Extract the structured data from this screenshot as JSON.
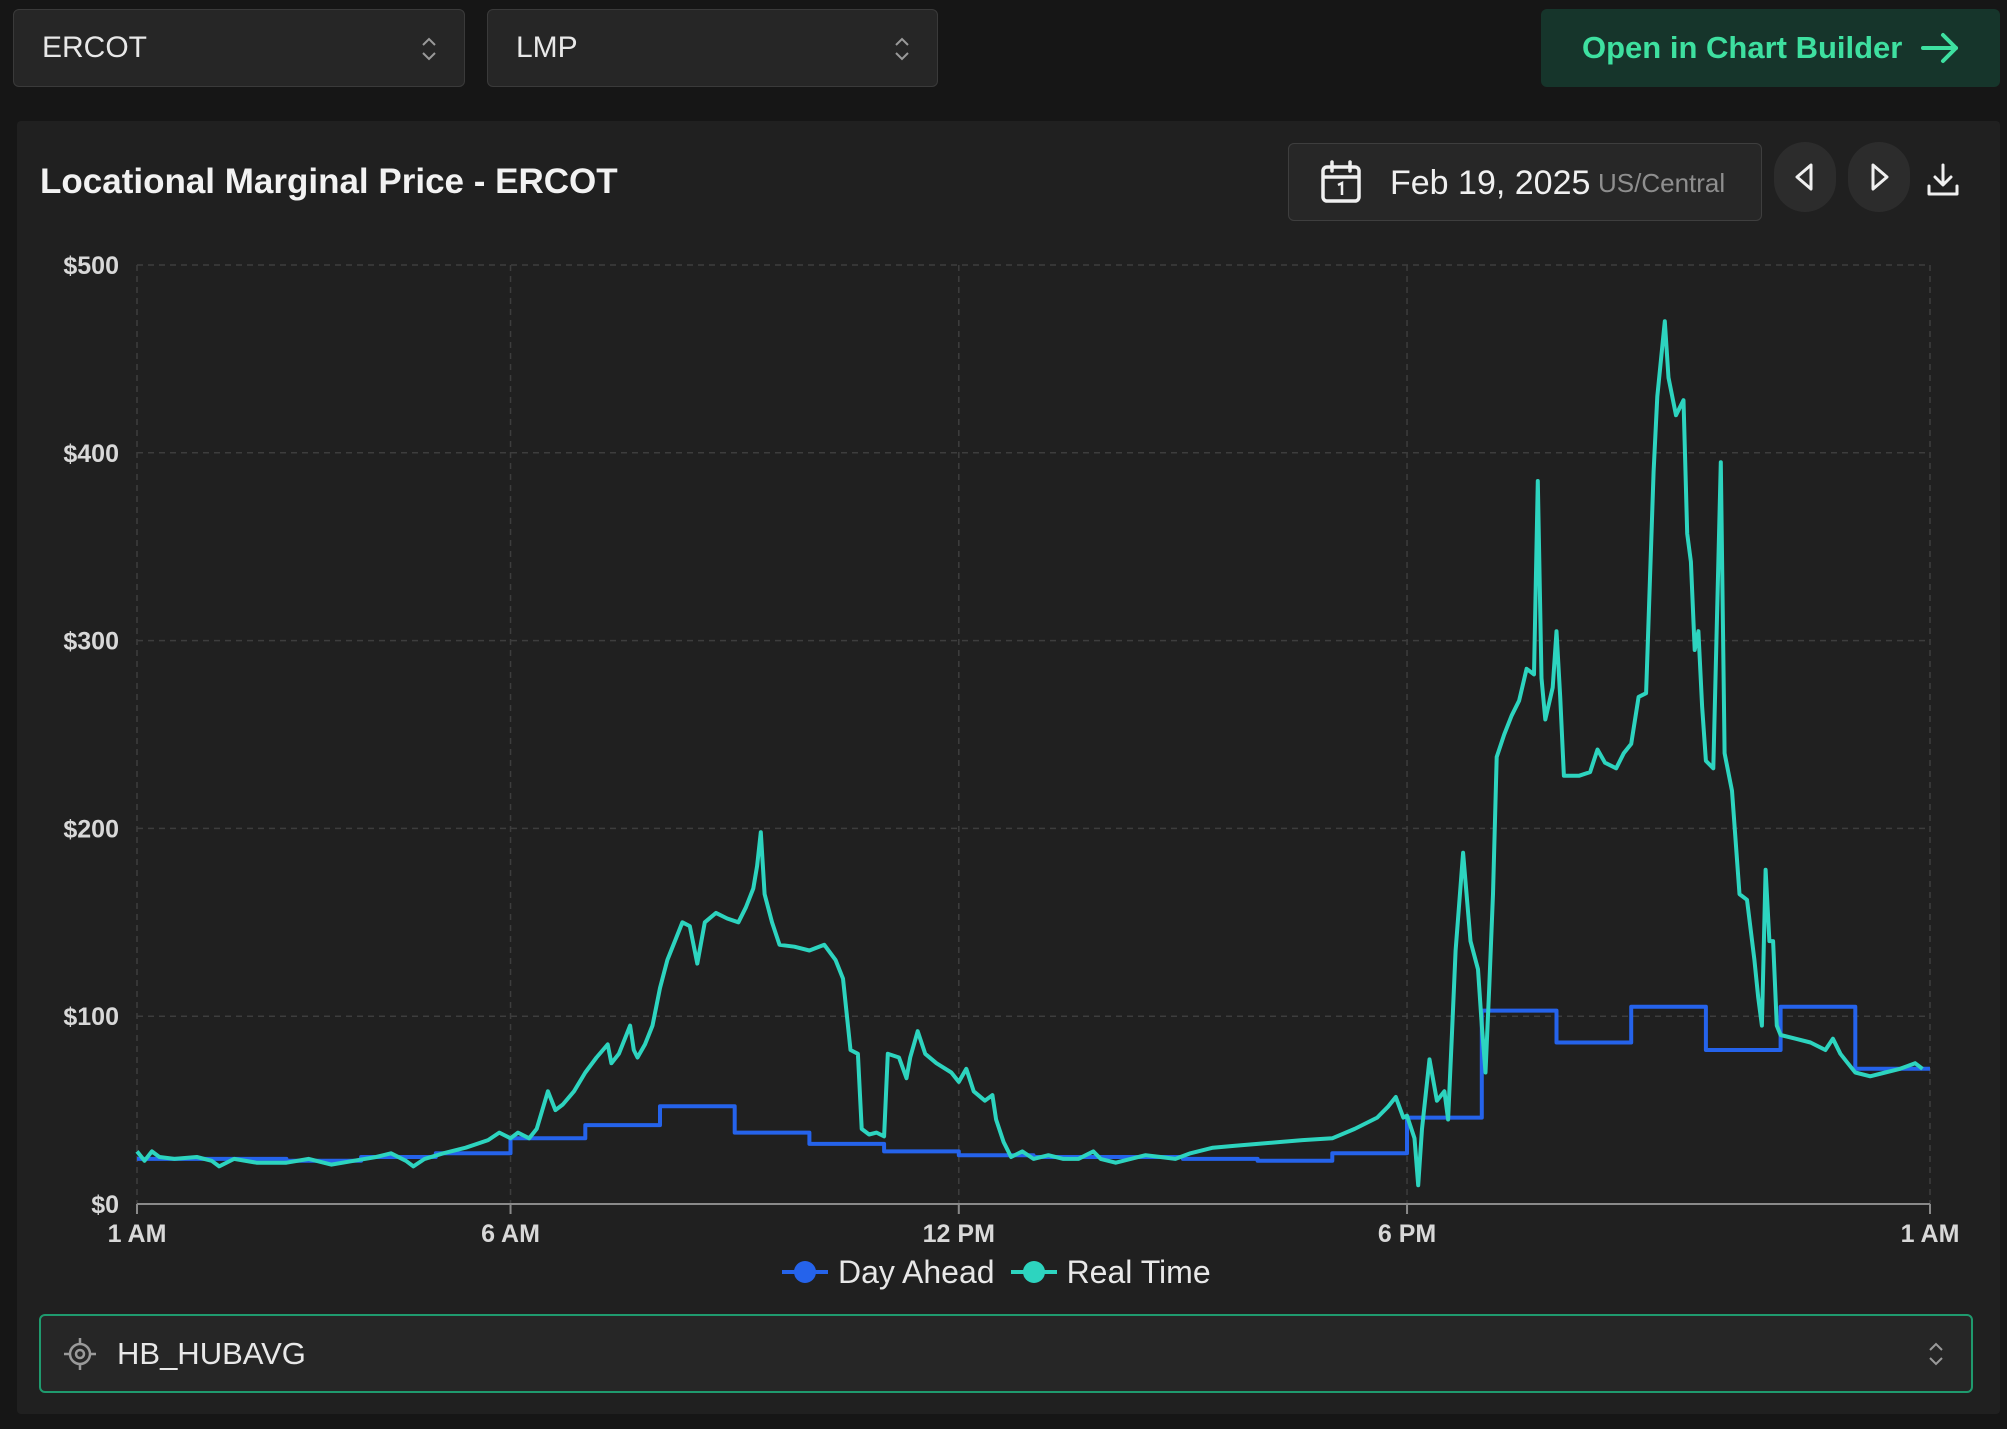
{
  "controls": {
    "iso": "ERCOT",
    "metric": "LMP",
    "open_builder": "Open in Chart Builder",
    "date": "Feb 19, 2025",
    "timezone": "US/Central",
    "node": "HB_HUBAVG"
  },
  "colors": {
    "day_ahead": "#2563eb",
    "real_time": "#2dd4bf",
    "accent": "#3ee0a0"
  },
  "chart_data": {
    "type": "line",
    "title": "Locational Marginal Price - ERCOT",
    "x_unit": "hours since 1 AM",
    "xlim": [
      0,
      24
    ],
    "ylim": [
      0,
      500
    ],
    "y_ticks": [
      "$0",
      "$100",
      "$200",
      "$300",
      "$400",
      "$500"
    ],
    "y_tick_values": [
      0,
      100,
      200,
      300,
      400,
      500
    ],
    "x_ticks": [
      "1 AM",
      "6 AM",
      "12 PM",
      "6 PM",
      "1 AM"
    ],
    "x_tick_values": [
      0,
      5,
      11,
      17,
      24
    ],
    "grid": true,
    "legend_position": "bottom",
    "series": [
      {
        "name": "Day Ahead",
        "step": true,
        "points": [
          [
            0,
            24
          ],
          [
            1,
            24
          ],
          [
            2,
            23
          ],
          [
            3,
            25
          ],
          [
            4,
            27
          ],
          [
            5,
            35
          ],
          [
            6,
            42
          ],
          [
            7,
            52
          ],
          [
            8,
            38
          ],
          [
            9,
            32
          ],
          [
            10,
            28
          ],
          [
            11,
            26
          ],
          [
            12,
            25
          ],
          [
            13,
            25
          ],
          [
            14,
            24
          ],
          [
            15,
            23
          ],
          [
            16,
            27
          ],
          [
            17,
            46
          ],
          [
            18,
            103
          ],
          [
            19,
            86
          ],
          [
            20,
            105
          ],
          [
            21,
            82
          ],
          [
            22,
            105
          ],
          [
            23,
            72
          ],
          [
            24,
            72
          ]
        ]
      },
      {
        "name": "Real Time",
        "step": false,
        "points": [
          [
            0,
            28
          ],
          [
            0.1,
            23
          ],
          [
            0.2,
            28
          ],
          [
            0.3,
            25
          ],
          [
            0.5,
            24
          ],
          [
            0.8,
            25
          ],
          [
            1,
            23
          ],
          [
            1.1,
            20
          ],
          [
            1.3,
            24
          ],
          [
            1.6,
            22
          ],
          [
            2,
            22
          ],
          [
            2.3,
            24
          ],
          [
            2.6,
            21
          ],
          [
            2.9,
            23
          ],
          [
            3.2,
            25
          ],
          [
            3.4,
            27
          ],
          [
            3.6,
            23
          ],
          [
            3.7,
            20
          ],
          [
            3.85,
            24
          ],
          [
            4.1,
            27
          ],
          [
            4.4,
            30
          ],
          [
            4.7,
            34
          ],
          [
            4.85,
            38
          ],
          [
            5,
            35
          ],
          [
            5.1,
            38
          ],
          [
            5.25,
            35
          ],
          [
            5.35,
            40
          ],
          [
            5.5,
            60
          ],
          [
            5.6,
            50
          ],
          [
            5.7,
            53
          ],
          [
            5.85,
            60
          ],
          [
            6,
            70
          ],
          [
            6.15,
            78
          ],
          [
            6.3,
            85
          ],
          [
            6.35,
            75
          ],
          [
            6.45,
            80
          ],
          [
            6.6,
            95
          ],
          [
            6.65,
            82
          ],
          [
            6.7,
            78
          ],
          [
            6.8,
            85
          ],
          [
            6.9,
            95
          ],
          [
            7,
            115
          ],
          [
            7.1,
            130
          ],
          [
            7.2,
            140
          ],
          [
            7.3,
            150
          ],
          [
            7.4,
            148
          ],
          [
            7.5,
            128
          ],
          [
            7.6,
            150
          ],
          [
            7.75,
            155
          ],
          [
            7.9,
            152
          ],
          [
            8.05,
            150
          ],
          [
            8.15,
            158
          ],
          [
            8.25,
            168
          ],
          [
            8.3,
            180
          ],
          [
            8.35,
            198
          ],
          [
            8.4,
            165
          ],
          [
            8.5,
            150
          ],
          [
            8.6,
            138
          ],
          [
            8.8,
            137
          ],
          [
            9,
            135
          ],
          [
            9.2,
            138
          ],
          [
            9.35,
            130
          ],
          [
            9.45,
            120
          ],
          [
            9.55,
            82
          ],
          [
            9.65,
            80
          ],
          [
            9.7,
            40
          ],
          [
            9.8,
            37
          ],
          [
            9.9,
            38
          ],
          [
            10,
            36
          ],
          [
            10.05,
            80
          ],
          [
            10.2,
            78
          ],
          [
            10.3,
            67
          ],
          [
            10.35,
            78
          ],
          [
            10.45,
            92
          ],
          [
            10.55,
            80
          ],
          [
            10.7,
            75
          ],
          [
            10.9,
            70
          ],
          [
            11,
            65
          ],
          [
            11.1,
            72
          ],
          [
            11.2,
            60
          ],
          [
            11.35,
            55
          ],
          [
            11.45,
            58
          ],
          [
            11.5,
            45
          ],
          [
            11.6,
            33
          ],
          [
            11.7,
            25
          ],
          [
            11.85,
            28
          ],
          [
            12,
            24
          ],
          [
            12.2,
            26
          ],
          [
            12.4,
            24
          ],
          [
            12.6,
            24
          ],
          [
            12.8,
            28
          ],
          [
            12.9,
            24
          ],
          [
            13.1,
            22
          ],
          [
            13.3,
            24
          ],
          [
            13.5,
            26
          ],
          [
            13.7,
            25
          ],
          [
            13.9,
            24
          ],
          [
            14.1,
            27
          ],
          [
            14.4,
            30
          ],
          [
            14.7,
            31
          ],
          [
            15,
            32
          ],
          [
            15.3,
            33
          ],
          [
            15.6,
            34
          ],
          [
            16,
            35
          ],
          [
            16.3,
            40
          ],
          [
            16.6,
            46
          ],
          [
            16.75,
            52
          ],
          [
            16.85,
            57
          ],
          [
            16.95,
            46
          ],
          [
            17,
            47
          ],
          [
            17.1,
            35
          ],
          [
            17.15,
            10
          ],
          [
            17.2,
            40
          ],
          [
            17.3,
            77
          ],
          [
            17.4,
            55
          ],
          [
            17.5,
            60
          ],
          [
            17.55,
            45
          ],
          [
            17.6,
            90
          ],
          [
            17.65,
            135
          ],
          [
            17.75,
            187
          ],
          [
            17.85,
            140
          ],
          [
            17.95,
            125
          ],
          [
            18,
            95
          ],
          [
            18.05,
            70
          ],
          [
            18.1,
            115
          ],
          [
            18.15,
            165
          ],
          [
            18.2,
            238
          ],
          [
            18.3,
            250
          ],
          [
            18.4,
            260
          ],
          [
            18.5,
            268
          ],
          [
            18.6,
            285
          ],
          [
            18.7,
            282
          ],
          [
            18.75,
            385
          ],
          [
            18.8,
            280
          ],
          [
            18.85,
            258
          ],
          [
            18.95,
            275
          ],
          [
            19,
            305
          ],
          [
            19.05,
            270
          ],
          [
            19.1,
            228
          ],
          [
            19.3,
            228
          ],
          [
            19.45,
            230
          ],
          [
            19.55,
            242
          ],
          [
            19.65,
            235
          ],
          [
            19.8,
            232
          ],
          [
            19.9,
            240
          ],
          [
            20,
            245
          ],
          [
            20.1,
            270
          ],
          [
            20.2,
            272
          ],
          [
            20.3,
            390
          ],
          [
            20.35,
            430
          ],
          [
            20.45,
            470
          ],
          [
            20.5,
            440
          ],
          [
            20.6,
            420
          ],
          [
            20.7,
            428
          ],
          [
            20.75,
            357
          ],
          [
            20.8,
            342
          ],
          [
            20.85,
            295
          ],
          [
            20.9,
            305
          ],
          [
            20.95,
            265
          ],
          [
            21,
            236
          ],
          [
            21.1,
            232
          ],
          [
            21.2,
            395
          ],
          [
            21.25,
            240
          ],
          [
            21.3,
            230
          ],
          [
            21.35,
            220
          ],
          [
            21.45,
            165
          ],
          [
            21.55,
            162
          ],
          [
            21.65,
            130
          ],
          [
            21.7,
            110
          ],
          [
            21.75,
            95
          ],
          [
            21.8,
            178
          ],
          [
            21.85,
            140
          ],
          [
            21.9,
            140
          ],
          [
            21.95,
            95
          ],
          [
            22,
            90
          ],
          [
            22.2,
            88
          ],
          [
            22.4,
            86
          ],
          [
            22.6,
            82
          ],
          [
            22.7,
            88
          ],
          [
            22.8,
            80
          ],
          [
            22.9,
            75
          ],
          [
            23,
            70
          ],
          [
            23.2,
            68
          ],
          [
            23.4,
            70
          ],
          [
            23.6,
            72
          ],
          [
            23.8,
            75
          ],
          [
            23.9,
            72
          ]
        ]
      }
    ]
  }
}
